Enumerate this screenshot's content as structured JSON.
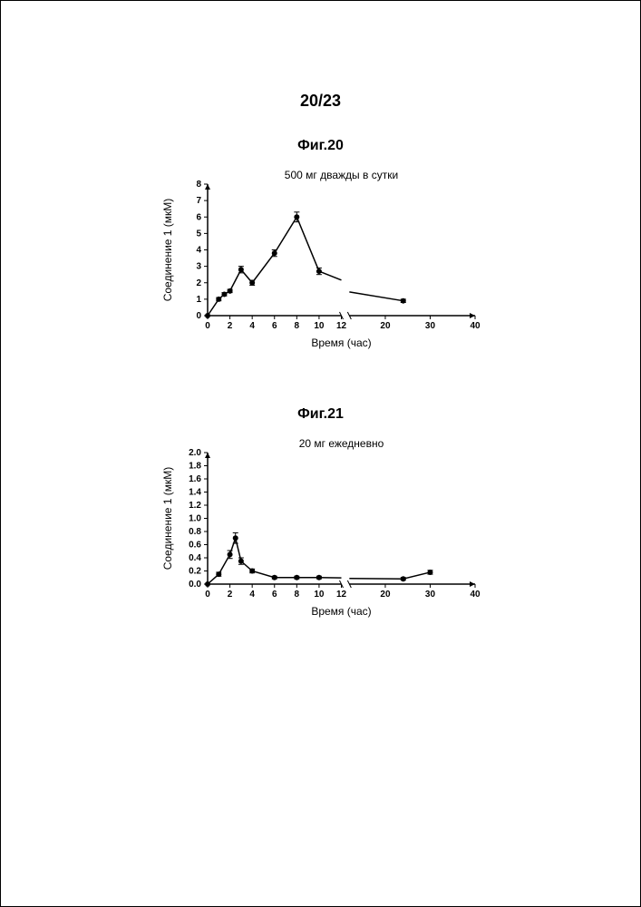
{
  "page_number": "20/23",
  "fig20": {
    "title": "Фиг.20",
    "subtitle": "500 мг дважды в сутки",
    "type": "line",
    "x_label": "Время (час)",
    "y_label": "Соединение 1 (мкМ)",
    "xlim": [
      0,
      40
    ],
    "ylim": [
      0,
      8
    ],
    "xtick_step": 2,
    "ytick_step": 1,
    "axis_break_x": 12,
    "points": [
      {
        "x": 0,
        "y": 0.0,
        "err": 0
      },
      {
        "x": 1,
        "y": 1.0,
        "err": 0.1
      },
      {
        "x": 1.5,
        "y": 1.3,
        "err": 0.1
      },
      {
        "x": 2,
        "y": 1.5,
        "err": 0.1
      },
      {
        "x": 3,
        "y": 2.8,
        "err": 0.2
      },
      {
        "x": 4,
        "y": 2.0,
        "err": 0.15
      },
      {
        "x": 6,
        "y": 3.8,
        "err": 0.2
      },
      {
        "x": 8,
        "y": 6.0,
        "err": 0.3
      },
      {
        "x": 10,
        "y": 2.7,
        "err": 0.2
      },
      {
        "x": 24,
        "y": 0.9,
        "err": 0.1
      }
    ],
    "background_color": "#ffffff",
    "axis_color": "#000000",
    "line_color": "#000000",
    "marker_color": "#000000",
    "marker_size": 3,
    "line_width": 1.5,
    "tick_fontsize": 10,
    "label_fontsize": 12,
    "subtitle_fontsize": 12
  },
  "fig21": {
    "title": "Фиг.21",
    "subtitle": "20 мг ежедневно",
    "type": "line",
    "x_label": "Время (час)",
    "y_label": "Соединение 1 (мкМ)",
    "xlim": [
      0,
      40
    ],
    "ylim": [
      0,
      2.0
    ],
    "xtick_step": 2,
    "ytick_step": 0.2,
    "axis_break_x": 12,
    "points": [
      {
        "x": 0,
        "y": 0.0,
        "err": 0
      },
      {
        "x": 1,
        "y": 0.15,
        "err": 0.03
      },
      {
        "x": 2,
        "y": 0.45,
        "err": 0.06
      },
      {
        "x": 2.5,
        "y": 0.7,
        "err": 0.08
      },
      {
        "x": 3,
        "y": 0.35,
        "err": 0.05
      },
      {
        "x": 4,
        "y": 0.2,
        "err": 0.03
      },
      {
        "x": 6,
        "y": 0.1,
        "err": 0.02
      },
      {
        "x": 8,
        "y": 0.1,
        "err": 0.02
      },
      {
        "x": 10,
        "y": 0.1,
        "err": 0.02
      },
      {
        "x": 24,
        "y": 0.08,
        "err": 0.02
      },
      {
        "x": 30,
        "y": 0.18,
        "err": 0.03
      }
    ],
    "background_color": "#ffffff",
    "axis_color": "#000000",
    "line_color": "#000000",
    "marker_color": "#000000",
    "marker_size": 3,
    "line_width": 1.5,
    "tick_fontsize": 10,
    "label_fontsize": 12,
    "subtitle_fontsize": 12
  }
}
